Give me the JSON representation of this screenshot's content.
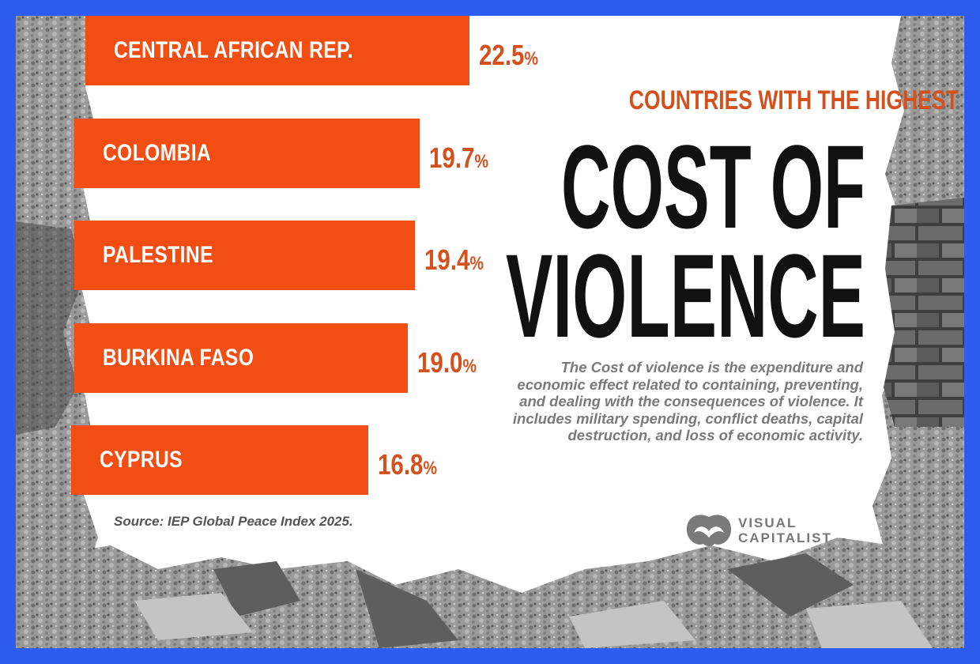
{
  "chart_data": {
    "type": "bar",
    "orientation": "horizontal",
    "categories": [
      "CENTRAL AFRICAN REP.",
      "COLOMBIA",
      "PALESTINE",
      "BURKINA FASO",
      "CYPRUS"
    ],
    "values": [
      22.5,
      19.7,
      19.4,
      19.0,
      16.8
    ],
    "value_labels": [
      "22.5",
      "19.7",
      "19.4",
      "19.0",
      "16.8"
    ],
    "unit": "%",
    "subtitle": "COUNTRIES WITH THE HIGHEST",
    "title_line1": "COST OF",
    "title_line2": "VIOLENCE",
    "description": "The Cost of violence is the expenditure and economic effect related to containing, preventing, and dealing with the consequences of violence. It includes military spending, conflict deaths, capital destruction, and loss of economic activity.",
    "source": "Source: IEP Global Peace Index 2025."
  },
  "branding": {
    "line1": "VISUAL",
    "line2": "CAPITALIST"
  },
  "colors": {
    "frame": "#2f5cf0",
    "bar": "#f24d12",
    "value_text": "#d4501d",
    "headline": "#111111",
    "rubble": "#8a8a8a"
  }
}
